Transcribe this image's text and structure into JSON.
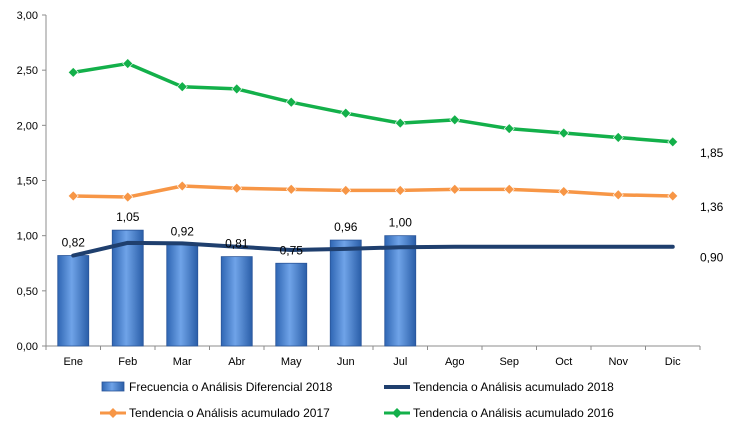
{
  "chart_data": {
    "type": "bar",
    "categories": [
      "Ene",
      "Feb",
      "Mar",
      "Abr",
      "May",
      "Jun",
      "Jul",
      "Ago",
      "Sep",
      "Oct",
      "Nov",
      "Dic"
    ],
    "ylim": [
      0,
      3
    ],
    "yticks": [
      "0,00",
      "0,50",
      "1,00",
      "1,50",
      "2,00",
      "2,50",
      "3,00"
    ],
    "grid": false,
    "legend_position": "bottom",
    "bar_series": {
      "name": "Frecuencia o Análisis Diferencial 2018",
      "color": "#3F7FD0",
      "values": [
        0.82,
        1.05,
        0.92,
        0.81,
        0.75,
        0.96,
        1.0
      ],
      "labels": [
        "0,82",
        "1,05",
        "0,92",
        "0,81",
        "0,75",
        "0,96",
        "1,00"
      ]
    },
    "line_series": [
      {
        "name": "Tendencia o Análisis acumulado 2018",
        "color": "#1F3F6E",
        "marker": "none",
        "values": [
          0.82,
          0.935,
          0.93,
          0.9,
          0.87,
          0.88,
          0.895,
          0.9,
          0.9,
          0.9,
          0.9,
          0.9
        ],
        "end_label": "0,90"
      },
      {
        "name": "Tendencia o Análisis acumulado 2017",
        "color": "#F79646",
        "marker": "diamond",
        "values": [
          1.36,
          1.35,
          1.45,
          1.43,
          1.42,
          1.41,
          1.41,
          1.42,
          1.42,
          1.4,
          1.37,
          1.36
        ],
        "end_label": "1,36"
      },
      {
        "name": "Tendencia o Análisis acumulado 2016",
        "color": "#13B04A",
        "marker": "diamond",
        "values": [
          2.48,
          2.56,
          2.35,
          2.33,
          2.21,
          2.11,
          2.02,
          2.05,
          1.97,
          1.93,
          1.89,
          1.85
        ],
        "end_label": "1,85"
      }
    ]
  }
}
